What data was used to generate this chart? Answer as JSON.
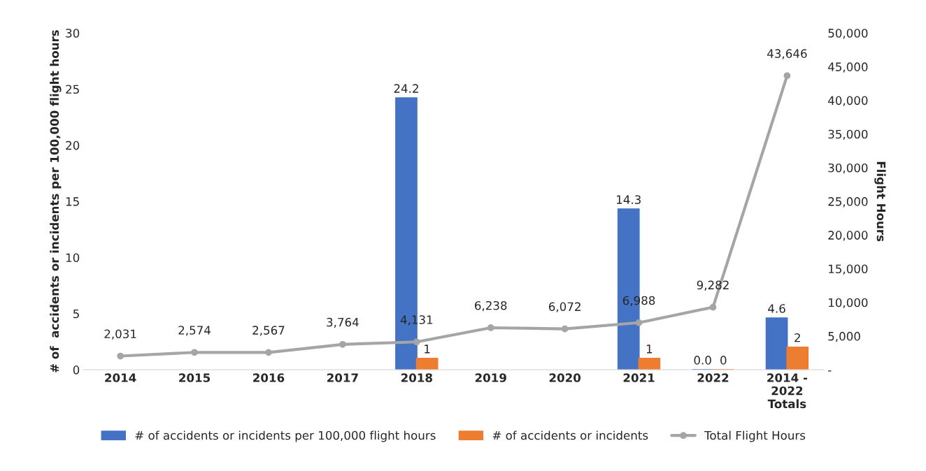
{
  "chart_data": {
    "type": "bar",
    "categories": [
      "2014",
      "2015",
      "2016",
      "2017",
      "2018",
      "2019",
      "2020",
      "2021",
      "2022",
      "2014 -\n2022\nTotals"
    ],
    "ylabel": "# of  accidents or incidents per 100,000 flight hours",
    "y2label": "Flight Hours",
    "ylim": [
      0,
      30
    ],
    "yticks": [
      0,
      5,
      10,
      15,
      20,
      25,
      30
    ],
    "y2lim": [
      0,
      50000
    ],
    "y2ticks": [
      {
        "value": 0,
        "label": "-"
      },
      {
        "value": 5000,
        "label": "5,000"
      },
      {
        "value": 10000,
        "label": "10,000"
      },
      {
        "value": 15000,
        "label": "15,000"
      },
      {
        "value": 20000,
        "label": "20,000"
      },
      {
        "value": 25000,
        "label": "25,000"
      },
      {
        "value": 30000,
        "label": "30,000"
      },
      {
        "value": 35000,
        "label": "35,000"
      },
      {
        "value": 40000,
        "label": "40,000"
      },
      {
        "value": 45000,
        "label": "45,000"
      },
      {
        "value": 50000,
        "label": "50,000"
      }
    ],
    "series": [
      {
        "name": "# of accidents or incidents per 100,000 flight hours",
        "color": "#4472c4",
        "values": [
          null,
          null,
          null,
          null,
          24.2,
          null,
          null,
          14.3,
          0.0,
          4.6
        ],
        "value_labels": [
          null,
          null,
          null,
          null,
          "24.2",
          null,
          null,
          "14.3",
          "0.0",
          "4.6"
        ]
      },
      {
        "name": "# of accidents or incidents",
        "color": "#ed7d31",
        "values": [
          null,
          null,
          null,
          null,
          1,
          null,
          null,
          1,
          0,
          2
        ],
        "value_labels": [
          null,
          null,
          null,
          null,
          "1",
          null,
          null,
          "1",
          "0",
          "2"
        ]
      },
      {
        "name": "Total Flight Hours",
        "type": "line",
        "axis": "y2",
        "color": "#a5a5a5",
        "marker": "circle",
        "line_style": "solid",
        "values": [
          2031,
          2574,
          2567,
          3764,
          4131,
          6238,
          6072,
          6988,
          9282,
          43646
        ],
        "value_labels": [
          "2,031",
          "2,574",
          "2,567",
          "3,764",
          "4,131",
          "6,238",
          "6,072",
          "6,988",
          "9,282",
          "43,646"
        ]
      }
    ],
    "grid": false,
    "legend": "bottom"
  }
}
